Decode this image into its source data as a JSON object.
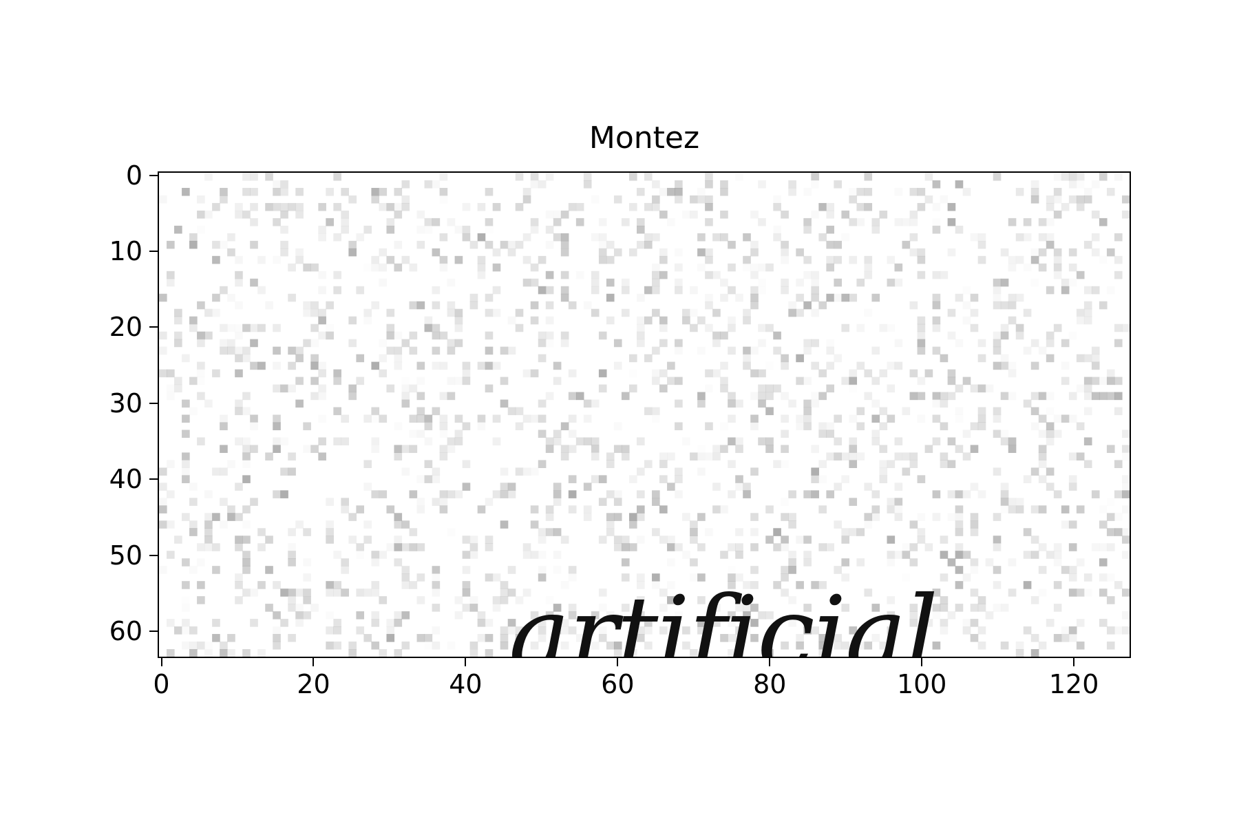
{
  "figure": {
    "title": "Montez",
    "handwritten_word": "artificial"
  },
  "axes": {
    "x_ticks": [
      "0",
      "20",
      "40",
      "60",
      "80",
      "100",
      "120"
    ],
    "y_ticks": [
      "0",
      "10",
      "20",
      "30",
      "40",
      "50",
      "60"
    ],
    "x_range": [
      0,
      127
    ],
    "y_range": [
      0,
      63
    ],
    "y_direction": "top-to-bottom"
  },
  "image": {
    "colormap": "gray",
    "background": "#ffffff",
    "ink": "#111111"
  }
}
